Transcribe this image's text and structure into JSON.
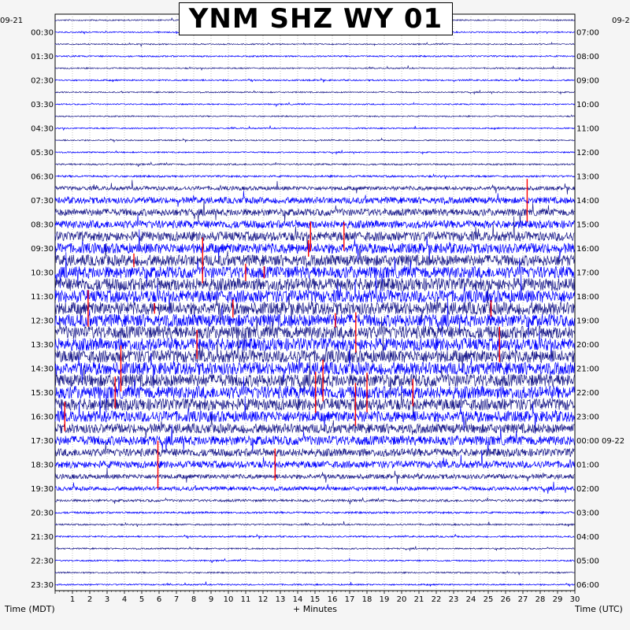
{
  "chart_data": {
    "type": "helicorder",
    "title": "YNM SHZ WY 01",
    "xlabel": "+ Minutes",
    "left_axis_label": "Time (MDT)",
    "right_axis_label": "Time (UTC)",
    "left_date": "09-21",
    "right_date": "09-2",
    "x_ticks": [
      1,
      2,
      3,
      4,
      5,
      6,
      7,
      8,
      9,
      10,
      11,
      12,
      13,
      14,
      15,
      16,
      17,
      18,
      19,
      20,
      21,
      22,
      23,
      24,
      25,
      26,
      27,
      28,
      29,
      30
    ],
    "xlim": [
      0,
      30
    ],
    "left_time_labels": [
      "00:30",
      "01:30",
      "02:30",
      "03:30",
      "04:30",
      "05:30",
      "06:30",
      "07:30",
      "08:30",
      "09:30",
      "10:30",
      "11:30",
      "12:30",
      "13:30",
      "14:30",
      "15:30",
      "16:30",
      "17:30",
      "18:30",
      "19:30",
      "20:30",
      "21:30",
      "22:30",
      "23:30"
    ],
    "right_time_labels": [
      "07:00",
      "08:00",
      "09:00",
      "10:00",
      "11:00",
      "12:00",
      "13:00",
      "14:00",
      "15:00",
      "16:00",
      "17:00",
      "18:00",
      "19:00",
      "20:00",
      "21:00",
      "22:00",
      "23:00",
      "00:00 09-22",
      "01:00",
      "02:00",
      "03:00",
      "04:00",
      "05:00",
      "06:00"
    ],
    "trace_rows": 48,
    "trace_colors": [
      "#1c1c8c",
      "#0000ff"
    ],
    "clip_color": "#ff0000",
    "grid": true,
    "row_activity": [
      0.8,
      0.8,
      0.8,
      0.9,
      0.8,
      0.9,
      0.8,
      0.8,
      0.8,
      0.8,
      0.8,
      0.8,
      1,
      1.2,
      2.5,
      4,
      4.5,
      5,
      6,
      6.5,
      7,
      7.5,
      8,
      8,
      8,
      8,
      8,
      8,
      8,
      8,
      8,
      8,
      7.5,
      7,
      6,
      6,
      5,
      4.5,
      3,
      2.5,
      1.5,
      1.2,
      1,
      1,
      0.9,
      0.9,
      0.9,
      0.9
    ]
  }
}
